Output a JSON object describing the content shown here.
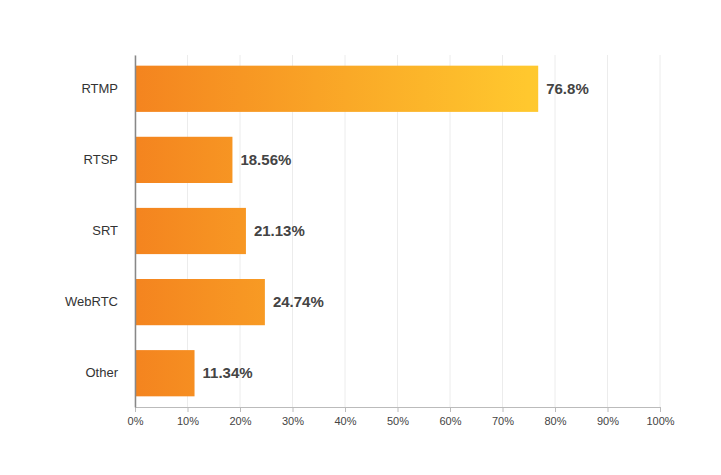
{
  "chart_data": {
    "type": "bar",
    "orientation": "horizontal",
    "categories": [
      "RTMP",
      "RTSP",
      "SRT",
      "WebRTC",
      "Other"
    ],
    "values": [
      76.8,
      18.56,
      21.13,
      24.74,
      11.34
    ],
    "value_labels": [
      "76.8%",
      "18.56%",
      "21.13%",
      "24.74%",
      "11.34%"
    ],
    "data_labels": true,
    "color": "#f4841f",
    "xlim": [
      0,
      100
    ],
    "xticks": [
      {
        "value": 0,
        "label": "0%"
      },
      {
        "value": 10,
        "label": "10%"
      },
      {
        "value": 20,
        "label": "20%"
      },
      {
        "value": 30,
        "label": "30%"
      },
      {
        "value": 40,
        "label": "40%"
      },
      {
        "value": 50,
        "label": "50%"
      },
      {
        "value": 60,
        "label": "60%"
      },
      {
        "value": 70,
        "label": "70%"
      },
      {
        "value": 80,
        "label": "80%"
      },
      {
        "value": 90,
        "label": "90%"
      },
      {
        "value": 100,
        "label": "100%"
      }
    ],
    "grid": true
  }
}
